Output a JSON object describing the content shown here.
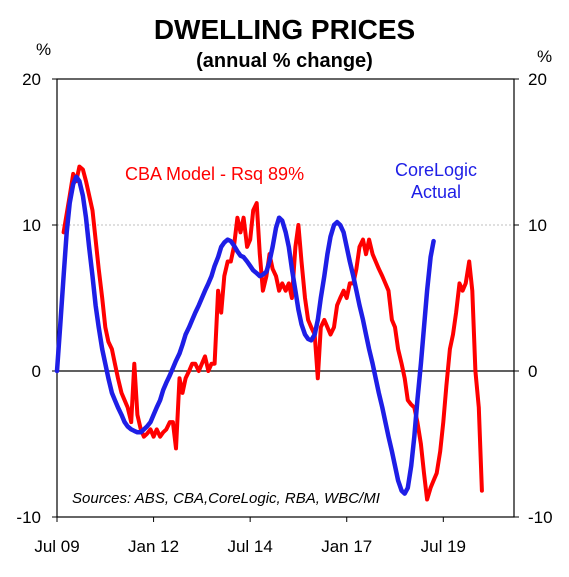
{
  "chart_data": {
    "type": "line",
    "title": "DWELLING PRICES",
    "subtitle": "(annual % change)",
    "ylabel_left": "%",
    "ylabel_right": "%",
    "ylim": [
      -10,
      20
    ],
    "yticks": [
      {
        "value": 20,
        "label": "20"
      },
      {
        "value": 10,
        "label": "10"
      },
      {
        "value": 0,
        "label": "0"
      },
      {
        "value": -10,
        "label": "-10"
      }
    ],
    "xlim": [
      2009.5,
      2021.33
    ],
    "xticks": [
      {
        "value": 2009.5,
        "label": "Jul 09"
      },
      {
        "value": 2012.0,
        "label": "Jan 12"
      },
      {
        "value": 2014.5,
        "label": "Jul 14"
      },
      {
        "value": 2017.0,
        "label": "Jan 17"
      },
      {
        "value": 2019.5,
        "label": "Jul 19"
      }
    ],
    "grid": {
      "horizontal": true,
      "vertical": false
    },
    "annotations": [
      {
        "text": "CBA Model - Rsq 89%",
        "color": "#ff0000"
      },
      {
        "text": "CoreLogic",
        "color": "#1e1ee6"
      },
      {
        "text": "Actual",
        "color": "#1e1ee6"
      }
    ],
    "source": "Sources: ABS, CBA,CoreLogic, RBA, WBC/MI",
    "colors": {
      "model": "#ff0000",
      "actual": "#1e1ee6",
      "grid": "#bfbfbf"
    },
    "series": [
      {
        "key": "model",
        "color": "#ff0000",
        "points": [
          [
            2009.67,
            9.5
          ],
          [
            2009.83,
            12.0
          ],
          [
            2009.92,
            13.5
          ],
          [
            2010.0,
            13.0
          ],
          [
            2010.08,
            14.0
          ],
          [
            2010.17,
            13.8
          ],
          [
            2010.25,
            13.0
          ],
          [
            2010.42,
            11.0
          ],
          [
            2010.5,
            9.0
          ],
          [
            2010.58,
            7.0
          ],
          [
            2010.67,
            5.0
          ],
          [
            2010.75,
            3.0
          ],
          [
            2010.83,
            2.0
          ],
          [
            2010.92,
            1.5
          ],
          [
            2011.0,
            0.5
          ],
          [
            2011.08,
            -0.5
          ],
          [
            2011.17,
            -1.5
          ],
          [
            2011.25,
            -2.0
          ],
          [
            2011.33,
            -2.5
          ],
          [
            2011.42,
            -3.5
          ],
          [
            2011.5,
            0.5
          ],
          [
            2011.58,
            -3.0
          ],
          [
            2011.67,
            -4.0
          ],
          [
            2011.75,
            -4.5
          ],
          [
            2011.83,
            -4.3
          ],
          [
            2011.92,
            -4.0
          ],
          [
            2012.0,
            -4.5
          ],
          [
            2012.08,
            -4.0
          ],
          [
            2012.17,
            -4.5
          ],
          [
            2012.25,
            -4.2
          ],
          [
            2012.33,
            -4.0
          ],
          [
            2012.42,
            -3.5
          ],
          [
            2012.5,
            -3.5
          ],
          [
            2012.58,
            -5.3
          ],
          [
            2012.67,
            -0.5
          ],
          [
            2012.75,
            -1.5
          ],
          [
            2012.83,
            -0.5
          ],
          [
            2012.92,
            0.0
          ],
          [
            2013.0,
            0.5
          ],
          [
            2013.08,
            0.5
          ],
          [
            2013.17,
            0.0
          ],
          [
            2013.25,
            0.5
          ],
          [
            2013.33,
            1.0
          ],
          [
            2013.42,
            0.0
          ],
          [
            2013.5,
            0.5
          ],
          [
            2013.58,
            0.5
          ],
          [
            2013.67,
            5.5
          ],
          [
            2013.75,
            4.0
          ],
          [
            2013.83,
            6.5
          ],
          [
            2013.92,
            7.5
          ],
          [
            2014.0,
            7.5
          ],
          [
            2014.08,
            8.5
          ],
          [
            2014.17,
            10.5
          ],
          [
            2014.25,
            9.5
          ],
          [
            2014.33,
            10.5
          ],
          [
            2014.42,
            8.5
          ],
          [
            2014.5,
            9.0
          ],
          [
            2014.58,
            11.0
          ],
          [
            2014.67,
            11.5
          ],
          [
            2014.75,
            8.0
          ],
          [
            2014.83,
            5.5
          ],
          [
            2014.92,
            6.5
          ],
          [
            2015.0,
            8.0
          ],
          [
            2015.08,
            7.0
          ],
          [
            2015.17,
            6.5
          ],
          [
            2015.25,
            5.5
          ],
          [
            2015.33,
            6.0
          ],
          [
            2015.42,
            5.5
          ],
          [
            2015.5,
            6.0
          ],
          [
            2015.58,
            5.0
          ],
          [
            2015.67,
            8.5
          ],
          [
            2015.75,
            10.0
          ],
          [
            2015.83,
            7.5
          ],
          [
            2015.92,
            5.0
          ],
          [
            2016.0,
            3.5
          ],
          [
            2016.08,
            3.0
          ],
          [
            2016.17,
            2.5
          ],
          [
            2016.25,
            -0.5
          ],
          [
            2016.33,
            3.0
          ],
          [
            2016.42,
            3.5
          ],
          [
            2016.5,
            3.0
          ],
          [
            2016.58,
            2.5
          ],
          [
            2016.67,
            3.0
          ],
          [
            2016.75,
            4.5
          ],
          [
            2016.83,
            5.0
          ],
          [
            2016.92,
            5.5
          ],
          [
            2017.0,
            5.0
          ],
          [
            2017.08,
            6.0
          ],
          [
            2017.17,
            6.0
          ],
          [
            2017.25,
            7.0
          ],
          [
            2017.33,
            8.5
          ],
          [
            2017.42,
            9.0
          ],
          [
            2017.5,
            8.0
          ],
          [
            2017.58,
            9.0
          ],
          [
            2017.67,
            8.0
          ],
          [
            2017.75,
            7.5
          ],
          [
            2017.83,
            7.0
          ],
          [
            2017.92,
            6.5
          ],
          [
            2018.0,
            6.0
          ],
          [
            2018.08,
            5.5
          ],
          [
            2018.17,
            3.5
          ],
          [
            2018.25,
            3.0
          ],
          [
            2018.33,
            1.5
          ],
          [
            2018.42,
            0.5
          ],
          [
            2018.5,
            -0.5
          ],
          [
            2018.58,
            -2.0
          ],
          [
            2018.67,
            -2.3
          ],
          [
            2018.75,
            -2.5
          ],
          [
            2018.83,
            -3.5
          ],
          [
            2018.92,
            -5.0
          ],
          [
            2019.0,
            -7.0
          ],
          [
            2019.08,
            -8.8
          ],
          [
            2019.17,
            -8.0
          ],
          [
            2019.25,
            -7.5
          ],
          [
            2019.33,
            -7.0
          ],
          [
            2019.42,
            -5.5
          ],
          [
            2019.5,
            -3.5
          ],
          [
            2019.58,
            -1.0
          ],
          [
            2019.67,
            1.5
          ],
          [
            2019.75,
            2.5
          ],
          [
            2019.83,
            4.0
          ],
          [
            2019.92,
            6.0
          ],
          [
            2020.0,
            5.5
          ],
          [
            2020.08,
            6.0
          ],
          [
            2020.17,
            7.5
          ],
          [
            2020.25,
            5.5
          ],
          [
            2020.33,
            0.0
          ],
          [
            2020.42,
            -2.5
          ],
          [
            2020.5,
            -8.2
          ]
        ]
      },
      {
        "key": "actual",
        "color": "#1e1ee6",
        "points": [
          [
            2009.5,
            0.0
          ],
          [
            2009.58,
            3.0
          ],
          [
            2009.67,
            6.5
          ],
          [
            2009.75,
            9.5
          ],
          [
            2009.83,
            11.5
          ],
          [
            2009.92,
            12.8
          ],
          [
            2010.0,
            13.3
          ],
          [
            2010.08,
            13.0
          ],
          [
            2010.17,
            12.0
          ],
          [
            2010.25,
            10.5
          ],
          [
            2010.33,
            8.5
          ],
          [
            2010.42,
            6.5
          ],
          [
            2010.5,
            4.5
          ],
          [
            2010.58,
            3.0
          ],
          [
            2010.67,
            1.5
          ],
          [
            2010.75,
            0.5
          ],
          [
            2010.83,
            -0.5
          ],
          [
            2010.92,
            -1.5
          ],
          [
            2011.0,
            -2.0
          ],
          [
            2011.08,
            -2.5
          ],
          [
            2011.17,
            -3.0
          ],
          [
            2011.25,
            -3.5
          ],
          [
            2011.33,
            -3.8
          ],
          [
            2011.42,
            -4.0
          ],
          [
            2011.5,
            -4.1
          ],
          [
            2011.58,
            -4.2
          ],
          [
            2011.67,
            -4.2
          ],
          [
            2011.75,
            -4.0
          ],
          [
            2011.83,
            -3.8
          ],
          [
            2011.92,
            -3.5
          ],
          [
            2012.0,
            -3.0
          ],
          [
            2012.08,
            -2.5
          ],
          [
            2012.17,
            -2.0
          ],
          [
            2012.25,
            -1.3
          ],
          [
            2012.33,
            -0.8
          ],
          [
            2012.42,
            -0.3
          ],
          [
            2012.5,
            0.2
          ],
          [
            2012.58,
            0.7
          ],
          [
            2012.67,
            1.2
          ],
          [
            2012.75,
            1.8
          ],
          [
            2012.83,
            2.5
          ],
          [
            2012.92,
            3.0
          ],
          [
            2013.0,
            3.5
          ],
          [
            2013.08,
            4.0
          ],
          [
            2013.17,
            4.5
          ],
          [
            2013.25,
            5.0
          ],
          [
            2013.33,
            5.5
          ],
          [
            2013.42,
            6.0
          ],
          [
            2013.5,
            6.5
          ],
          [
            2013.58,
            7.2
          ],
          [
            2013.67,
            7.8
          ],
          [
            2013.75,
            8.5
          ],
          [
            2013.83,
            8.8
          ],
          [
            2013.92,
            9.0
          ],
          [
            2014.0,
            8.9
          ],
          [
            2014.08,
            8.6
          ],
          [
            2014.17,
            8.2
          ],
          [
            2014.25,
            7.9
          ],
          [
            2014.33,
            7.8
          ],
          [
            2014.42,
            7.5
          ],
          [
            2014.5,
            7.2
          ],
          [
            2014.58,
            6.9
          ],
          [
            2014.67,
            6.7
          ],
          [
            2014.75,
            6.5
          ],
          [
            2014.83,
            6.6
          ],
          [
            2014.92,
            6.8
          ],
          [
            2015.0,
            7.5
          ],
          [
            2015.08,
            8.5
          ],
          [
            2015.17,
            9.8
          ],
          [
            2015.25,
            10.5
          ],
          [
            2015.33,
            10.3
          ],
          [
            2015.42,
            9.5
          ],
          [
            2015.5,
            8.5
          ],
          [
            2015.58,
            7.0
          ],
          [
            2015.67,
            5.5
          ],
          [
            2015.75,
            4.2
          ],
          [
            2015.83,
            3.2
          ],
          [
            2015.92,
            2.5
          ],
          [
            2016.0,
            2.2
          ],
          [
            2016.08,
            2.1
          ],
          [
            2016.17,
            2.5
          ],
          [
            2016.25,
            3.5
          ],
          [
            2016.33,
            5.0
          ],
          [
            2016.42,
            6.5
          ],
          [
            2016.5,
            8.0
          ],
          [
            2016.58,
            9.2
          ],
          [
            2016.67,
            10.0
          ],
          [
            2016.75,
            10.2
          ],
          [
            2016.83,
            10.0
          ],
          [
            2016.92,
            9.5
          ],
          [
            2017.0,
            8.5
          ],
          [
            2017.08,
            7.5
          ],
          [
            2017.17,
            6.5
          ],
          [
            2017.25,
            5.5
          ],
          [
            2017.33,
            4.5
          ],
          [
            2017.42,
            3.5
          ],
          [
            2017.5,
            2.5
          ],
          [
            2017.58,
            1.5
          ],
          [
            2017.67,
            0.5
          ],
          [
            2017.75,
            -0.5
          ],
          [
            2017.83,
            -1.5
          ],
          [
            2017.92,
            -2.5
          ],
          [
            2018.0,
            -3.5
          ],
          [
            2018.08,
            -4.5
          ],
          [
            2018.17,
            -5.5
          ],
          [
            2018.25,
            -6.5
          ],
          [
            2018.33,
            -7.5
          ],
          [
            2018.42,
            -8.2
          ],
          [
            2018.5,
            -8.4
          ],
          [
            2018.58,
            -8.0
          ],
          [
            2018.67,
            -6.5
          ],
          [
            2018.75,
            -4.5
          ],
          [
            2018.83,
            -2.0
          ],
          [
            2018.92,
            0.5
          ],
          [
            2019.0,
            3.0
          ],
          [
            2019.08,
            5.5
          ],
          [
            2019.17,
            7.8
          ],
          [
            2019.25,
            8.9
          ]
        ]
      }
    ]
  }
}
